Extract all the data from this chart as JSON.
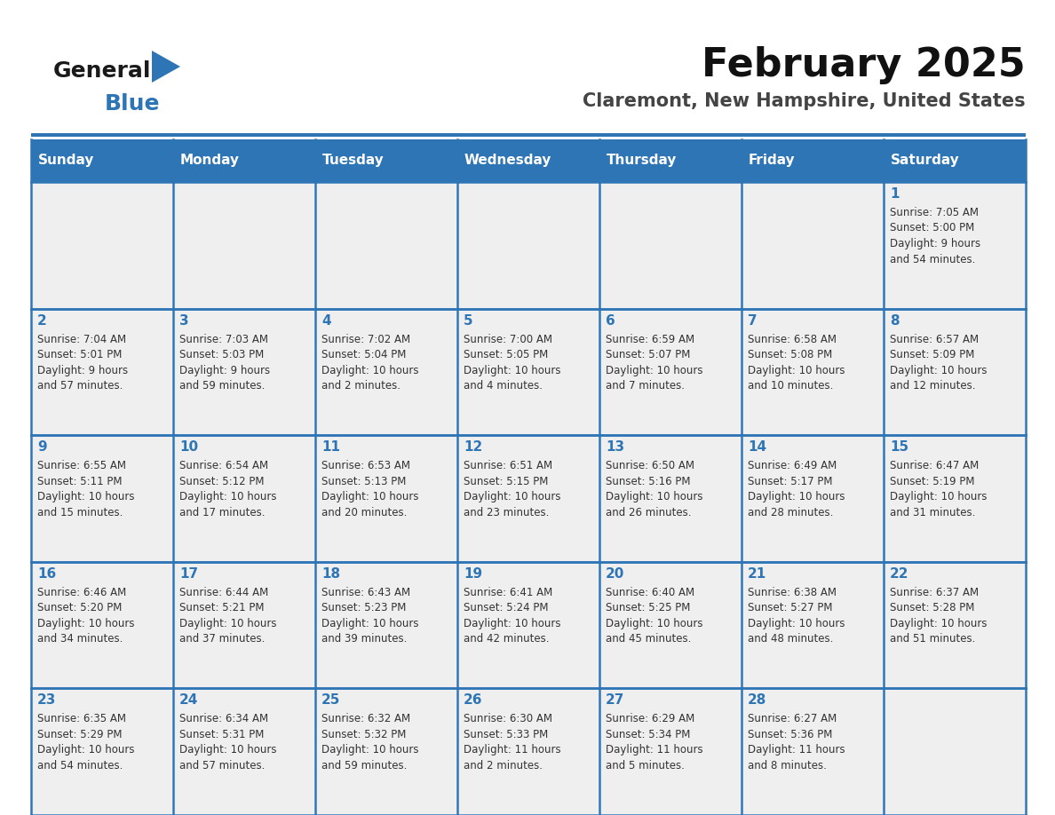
{
  "title": "February 2025",
  "subtitle": "Claremont, New Hampshire, United States",
  "header_bg": "#2E75B6",
  "header_text": "#FFFFFF",
  "cell_bg": "#EFEFEF",
  "border_color": "#2E75B6",
  "day_number_color": "#2E75B6",
  "text_color": "#333333",
  "logo_general_color": "#1A1A1A",
  "logo_blue_color": "#2E75B6",
  "logo_triangle_color": "#2E75B6",
  "days_of_week": [
    "Sunday",
    "Monday",
    "Tuesday",
    "Wednesday",
    "Thursday",
    "Friday",
    "Saturday"
  ],
  "weeks": [
    [
      {
        "day": null,
        "info": null
      },
      {
        "day": null,
        "info": null
      },
      {
        "day": null,
        "info": null
      },
      {
        "day": null,
        "info": null
      },
      {
        "day": null,
        "info": null
      },
      {
        "day": null,
        "info": null
      },
      {
        "day": "1",
        "info": "Sunrise: 7:05 AM\nSunset: 5:00 PM\nDaylight: 9 hours\nand 54 minutes."
      }
    ],
    [
      {
        "day": "2",
        "info": "Sunrise: 7:04 AM\nSunset: 5:01 PM\nDaylight: 9 hours\nand 57 minutes."
      },
      {
        "day": "3",
        "info": "Sunrise: 7:03 AM\nSunset: 5:03 PM\nDaylight: 9 hours\nand 59 minutes."
      },
      {
        "day": "4",
        "info": "Sunrise: 7:02 AM\nSunset: 5:04 PM\nDaylight: 10 hours\nand 2 minutes."
      },
      {
        "day": "5",
        "info": "Sunrise: 7:00 AM\nSunset: 5:05 PM\nDaylight: 10 hours\nand 4 minutes."
      },
      {
        "day": "6",
        "info": "Sunrise: 6:59 AM\nSunset: 5:07 PM\nDaylight: 10 hours\nand 7 minutes."
      },
      {
        "day": "7",
        "info": "Sunrise: 6:58 AM\nSunset: 5:08 PM\nDaylight: 10 hours\nand 10 minutes."
      },
      {
        "day": "8",
        "info": "Sunrise: 6:57 AM\nSunset: 5:09 PM\nDaylight: 10 hours\nand 12 minutes."
      }
    ],
    [
      {
        "day": "9",
        "info": "Sunrise: 6:55 AM\nSunset: 5:11 PM\nDaylight: 10 hours\nand 15 minutes."
      },
      {
        "day": "10",
        "info": "Sunrise: 6:54 AM\nSunset: 5:12 PM\nDaylight: 10 hours\nand 17 minutes."
      },
      {
        "day": "11",
        "info": "Sunrise: 6:53 AM\nSunset: 5:13 PM\nDaylight: 10 hours\nand 20 minutes."
      },
      {
        "day": "12",
        "info": "Sunrise: 6:51 AM\nSunset: 5:15 PM\nDaylight: 10 hours\nand 23 minutes."
      },
      {
        "day": "13",
        "info": "Sunrise: 6:50 AM\nSunset: 5:16 PM\nDaylight: 10 hours\nand 26 minutes."
      },
      {
        "day": "14",
        "info": "Sunrise: 6:49 AM\nSunset: 5:17 PM\nDaylight: 10 hours\nand 28 minutes."
      },
      {
        "day": "15",
        "info": "Sunrise: 6:47 AM\nSunset: 5:19 PM\nDaylight: 10 hours\nand 31 minutes."
      }
    ],
    [
      {
        "day": "16",
        "info": "Sunrise: 6:46 AM\nSunset: 5:20 PM\nDaylight: 10 hours\nand 34 minutes."
      },
      {
        "day": "17",
        "info": "Sunrise: 6:44 AM\nSunset: 5:21 PM\nDaylight: 10 hours\nand 37 minutes."
      },
      {
        "day": "18",
        "info": "Sunrise: 6:43 AM\nSunset: 5:23 PM\nDaylight: 10 hours\nand 39 minutes."
      },
      {
        "day": "19",
        "info": "Sunrise: 6:41 AM\nSunset: 5:24 PM\nDaylight: 10 hours\nand 42 minutes."
      },
      {
        "day": "20",
        "info": "Sunrise: 6:40 AM\nSunset: 5:25 PM\nDaylight: 10 hours\nand 45 minutes."
      },
      {
        "day": "21",
        "info": "Sunrise: 6:38 AM\nSunset: 5:27 PM\nDaylight: 10 hours\nand 48 minutes."
      },
      {
        "day": "22",
        "info": "Sunrise: 6:37 AM\nSunset: 5:28 PM\nDaylight: 10 hours\nand 51 minutes."
      }
    ],
    [
      {
        "day": "23",
        "info": "Sunrise: 6:35 AM\nSunset: 5:29 PM\nDaylight: 10 hours\nand 54 minutes."
      },
      {
        "day": "24",
        "info": "Sunrise: 6:34 AM\nSunset: 5:31 PM\nDaylight: 10 hours\nand 57 minutes."
      },
      {
        "day": "25",
        "info": "Sunrise: 6:32 AM\nSunset: 5:32 PM\nDaylight: 10 hours\nand 59 minutes."
      },
      {
        "day": "26",
        "info": "Sunrise: 6:30 AM\nSunset: 5:33 PM\nDaylight: 11 hours\nand 2 minutes."
      },
      {
        "day": "27",
        "info": "Sunrise: 6:29 AM\nSunset: 5:34 PM\nDaylight: 11 hours\nand 5 minutes."
      },
      {
        "day": "28",
        "info": "Sunrise: 6:27 AM\nSunset: 5:36 PM\nDaylight: 11 hours\nand 8 minutes."
      },
      {
        "day": null,
        "info": null
      }
    ]
  ],
  "title_fontsize": 32,
  "subtitle_fontsize": 15,
  "dow_fontsize": 11,
  "day_num_fontsize": 11,
  "info_fontsize": 8.5
}
